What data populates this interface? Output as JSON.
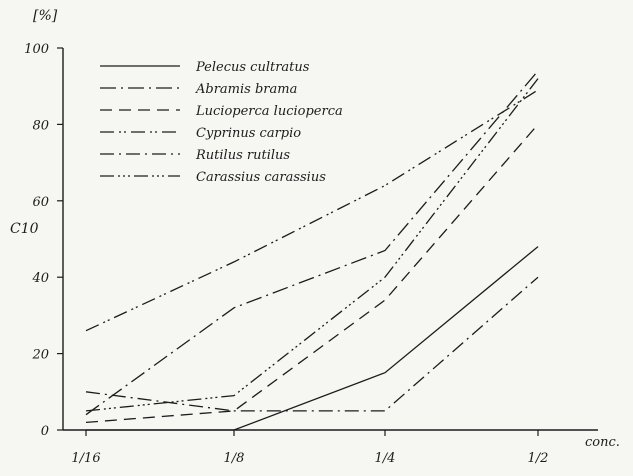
{
  "chart_data": {
    "type": "line",
    "title": "",
    "ylabel": "C10",
    "yunit": "[%]",
    "xlabel": "conc.",
    "ylim": [
      0,
      100
    ],
    "categories": [
      "1/16",
      "1/8",
      "1/4",
      "1/2"
    ],
    "y_ticks": [
      "0",
      "20",
      "40",
      "60",
      "80",
      "100"
    ],
    "legend_position": "top-left",
    "grid": false,
    "series": [
      {
        "name": "Pelecus cultratus",
        "values": [
          0,
          0,
          15,
          48
        ]
      },
      {
        "name": "Abramis brama",
        "values": [
          4,
          32,
          47,
          94
        ]
      },
      {
        "name": "Lucioperca lucioperca",
        "values": [
          2,
          5,
          34,
          80
        ]
      },
      {
        "name": "Cyprinus carpio",
        "values": [
          26,
          44,
          64,
          89
        ]
      },
      {
        "name": "Rutilus rutilus",
        "values": [
          10,
          5,
          5,
          40
        ]
      },
      {
        "name": "Carassius carassius",
        "values": [
          5,
          9,
          40,
          92
        ]
      }
    ]
  }
}
